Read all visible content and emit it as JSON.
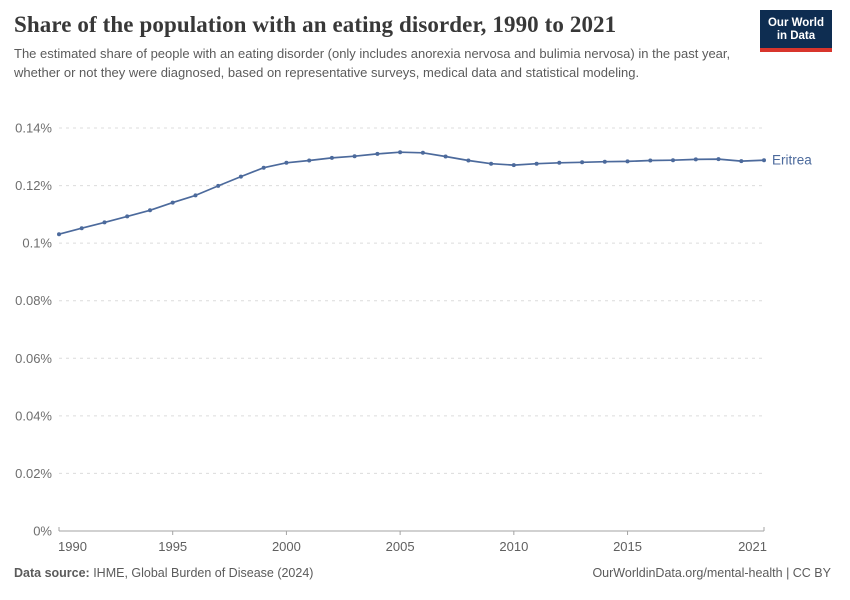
{
  "header": {
    "title": "Share of the population with an eating disorder, 1990 to 2021",
    "subtitle": "The estimated share of people with an eating disorder (only includes anorexia nervosa and bulimia nervosa) in the past year, whether or not they were diagnosed, based on representative surveys, medical data and statistical modeling.",
    "logo": {
      "line1": "Our World",
      "line2": "in Data"
    }
  },
  "chart_data": {
    "type": "line",
    "title": "Share of the population with an eating disorder, 1990 to 2021",
    "entity_label": "Eritrea",
    "unit": "%",
    "grid": "horizontal-dashed",
    "legend": "line-end-label",
    "xlim": [
      1990,
      2021
    ],
    "ylim": [
      0,
      0.14
    ],
    "x": [
      1990,
      1991,
      1992,
      1993,
      1994,
      1995,
      1996,
      1997,
      1998,
      1999,
      2000,
      2001,
      2002,
      2003,
      2004,
      2005,
      2006,
      2007,
      2008,
      2009,
      2010,
      2011,
      2012,
      2013,
      2014,
      2015,
      2016,
      2017,
      2018,
      2019,
      2020,
      2021
    ],
    "series": [
      {
        "name": "Eritrea",
        "color": "#4c6a9c",
        "values": [
          0.1031,
          0.1052,
          0.1072,
          0.1093,
          0.1114,
          0.1141,
          0.1166,
          0.1199,
          0.1231,
          0.1262,
          0.1279,
          0.1287,
          0.1296,
          0.1302,
          0.131,
          0.1316,
          0.1314,
          0.1301,
          0.1287,
          0.1276,
          0.1271,
          0.1276,
          0.1279,
          0.1281,
          0.1283,
          0.1284,
          0.1287,
          0.1288,
          0.1291,
          0.1292,
          0.1285,
          0.1288
        ]
      }
    ],
    "yticks": [
      {
        "value": 0,
        "label": "0%"
      },
      {
        "value": 0.02,
        "label": "0.02%"
      },
      {
        "value": 0.04,
        "label": "0.04%"
      },
      {
        "value": 0.06,
        "label": "0.06%"
      },
      {
        "value": 0.08,
        "label": "0.08%"
      },
      {
        "value": 0.1,
        "label": "0.1%"
      },
      {
        "value": 0.12,
        "label": "0.12%"
      },
      {
        "value": 0.14,
        "label": "0.14%"
      }
    ],
    "xticks": [
      {
        "value": 1990,
        "label": "1990"
      },
      {
        "value": 1995,
        "label": "1995"
      },
      {
        "value": 2000,
        "label": "2000"
      },
      {
        "value": 2005,
        "label": "2005"
      },
      {
        "value": 2010,
        "label": "2010"
      },
      {
        "value": 2015,
        "label": "2015"
      },
      {
        "value": 2021,
        "label": "2021"
      }
    ]
  },
  "colors": {
    "line": "#4c6a9c",
    "grid": "#dcdcdc",
    "axis": "#a3a3a3",
    "y_tick_label": "#6e6e6e",
    "x_tick_label": "#606060",
    "logo_bg": "#0e2d51",
    "logo_accent": "#d8352c"
  },
  "footer": {
    "source_label": "Data source:",
    "source_value": " IHME, Global Burden of Disease (2024)",
    "right_text": "OurWorldinData.org/mental-health | CC BY"
  }
}
